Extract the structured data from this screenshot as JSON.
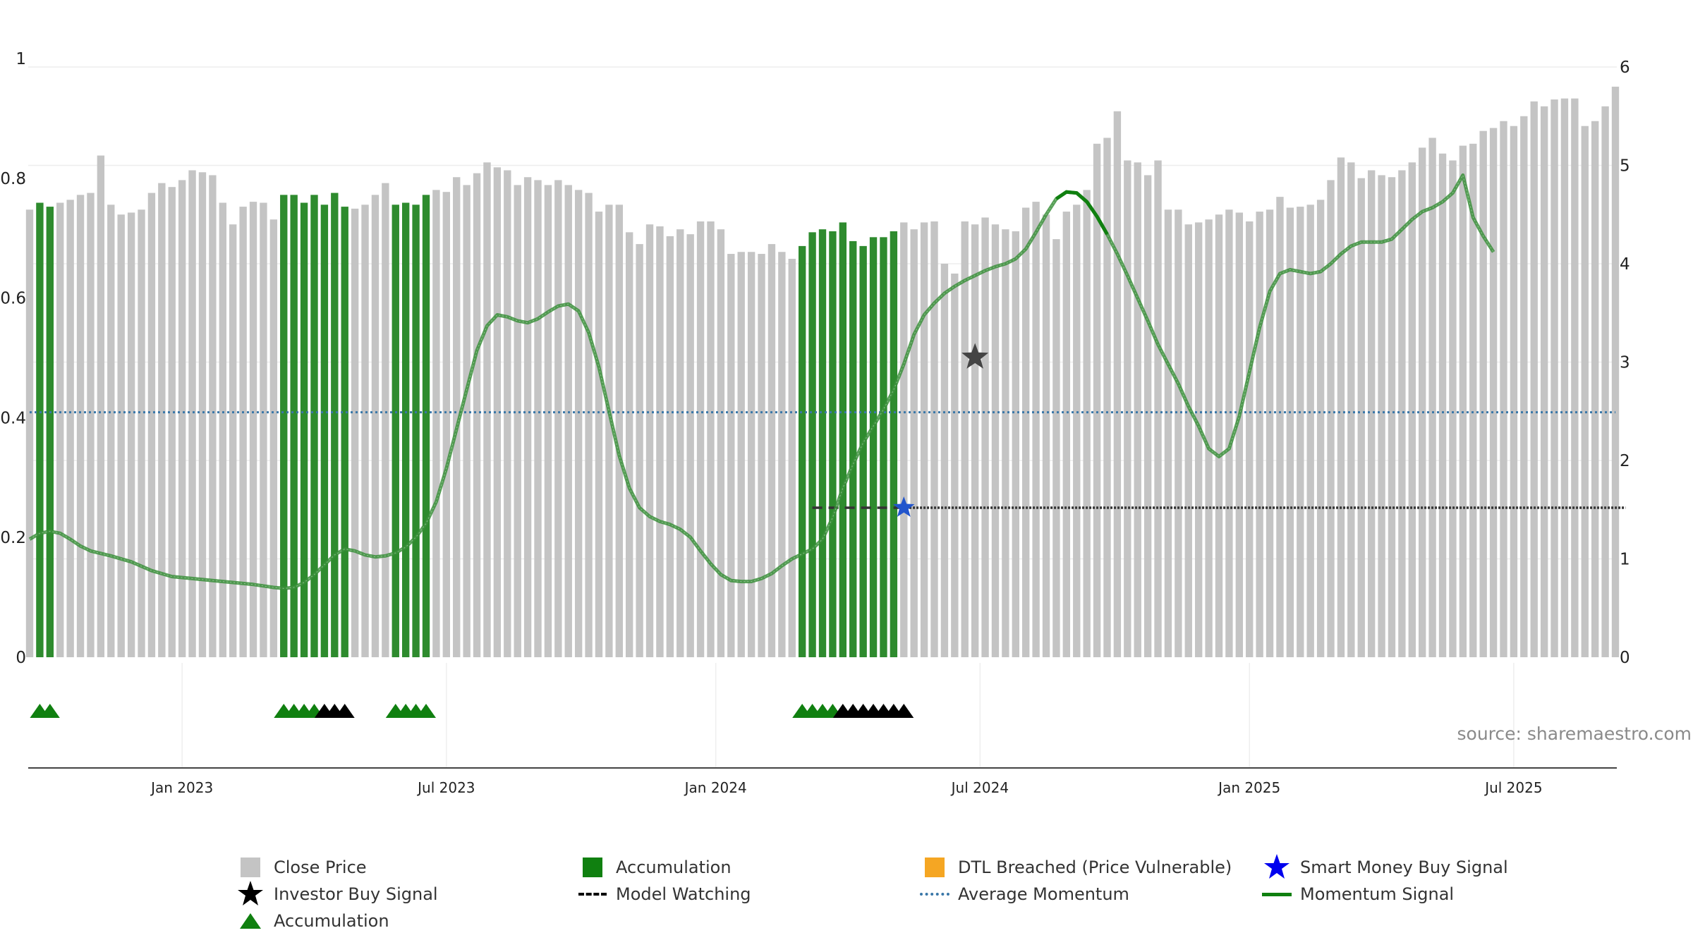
{
  "chart_data": {
    "type": "bar",
    "title": "",
    "source": "source: sharemaestro.com",
    "colors": {
      "close_price": "#c4c4c4",
      "accumulation": "#2e8b2e",
      "momentum": "#3b8f3b",
      "momentum_highlight": "#108010",
      "avg_momentum": "#3a77a8",
      "model_watching": "#333333",
      "investor_star": "#444444",
      "smart_money_star": "#2255cc",
      "triangle_green": "#108010",
      "triangle_black": "#000000"
    },
    "left_axis": {
      "ticks": [
        "0",
        "0.2",
        "0.4",
        "0.6",
        "0.8",
        "1"
      ],
      "range": [
        0,
        1
      ]
    },
    "right_axis": {
      "ticks": [
        "0",
        "1",
        "2",
        "3",
        "4",
        "5",
        "6"
      ],
      "range": [
        0,
        6
      ]
    },
    "x_axis": {
      "labels": [
        "Jan 2023",
        "Jul 2023",
        "Jan 2024",
        "Jul 2024",
        "Jan 2025",
        "Jul 2025"
      ],
      "label_bar_index": [
        15,
        41,
        67.5,
        93.5,
        120,
        146
      ]
    },
    "close_price": [
      4.55,
      4.62,
      4.58,
      4.62,
      4.65,
      4.7,
      4.72,
      5.1,
      4.6,
      4.5,
      4.52,
      4.55,
      4.72,
      4.82,
      4.78,
      4.85,
      4.95,
      4.93,
      4.9,
      4.62,
      4.4,
      4.58,
      4.63,
      4.62,
      4.45,
      4.7,
      4.7,
      4.62,
      4.7,
      4.6,
      4.72,
      4.58,
      4.56,
      4.6,
      4.7,
      4.82,
      4.6,
      4.62,
      4.6,
      4.7,
      4.75,
      4.73,
      4.88,
      4.8,
      4.92,
      5.03,
      4.98,
      4.95,
      4.8,
      4.88,
      4.85,
      4.8,
      4.85,
      4.8,
      4.75,
      4.72,
      4.53,
      4.6,
      4.6,
      4.32,
      4.2,
      4.4,
      4.38,
      4.28,
      4.35,
      4.3,
      4.43,
      4.43,
      4.35,
      4.1,
      4.12,
      4.12,
      4.1,
      4.2,
      4.12,
      4.05,
      4.18,
      4.32,
      4.35,
      4.33,
      4.42,
      4.23,
      4.18,
      4.27,
      4.27,
      4.33,
      4.42,
      4.35,
      4.42,
      4.43,
      4.0,
      3.9,
      4.43,
      4.4,
      4.47,
      4.4,
      4.35,
      4.33,
      4.57,
      4.63,
      4.5,
      4.25,
      4.53,
      4.6,
      4.75,
      5.22,
      5.28,
      5.55,
      5.05,
      5.03,
      4.9,
      5.05,
      4.55,
      4.55,
      4.4,
      4.42,
      4.45,
      4.5,
      4.55,
      4.52,
      4.43,
      4.53,
      4.55,
      4.68,
      4.57,
      4.58,
      4.6,
      4.65,
      4.85,
      5.08,
      5.03,
      4.87,
      4.95,
      4.9,
      4.88,
      4.95,
      5.03,
      5.18,
      5.28,
      5.12,
      5.05,
      5.2,
      5.22,
      5.35,
      5.38,
      5.45,
      5.4,
      5.5,
      5.65,
      5.6,
      5.67,
      5.68,
      5.68,
      5.4,
      5.45,
      5.6,
      5.8
    ],
    "accumulation_ranges": [
      [
        1,
        2
      ],
      [
        25,
        31
      ],
      [
        36,
        39
      ],
      [
        76,
        85
      ]
    ],
    "momentum_curve": [
      [
        0,
        1.2
      ],
      [
        1,
        1.26
      ],
      [
        2,
        1.28
      ],
      [
        3,
        1.26
      ],
      [
        4,
        1.2
      ],
      [
        5,
        1.13
      ],
      [
        6,
        1.08
      ],
      [
        8,
        1.03
      ],
      [
        10,
        0.97
      ],
      [
        12,
        0.88
      ],
      [
        14,
        0.82
      ],
      [
        16,
        0.8
      ],
      [
        18,
        0.78
      ],
      [
        20,
        0.76
      ],
      [
        22,
        0.74
      ],
      [
        24,
        0.71
      ],
      [
        25,
        0.7
      ],
      [
        26,
        0.71
      ],
      [
        27,
        0.76
      ],
      [
        28,
        0.84
      ],
      [
        29,
        0.94
      ],
      [
        30,
        1.04
      ],
      [
        31,
        1.1
      ],
      [
        32,
        1.08
      ],
      [
        33,
        1.04
      ],
      [
        34,
        1.02
      ],
      [
        35,
        1.03
      ],
      [
        36,
        1.06
      ],
      [
        37,
        1.12
      ],
      [
        38,
        1.22
      ],
      [
        39,
        1.36
      ],
      [
        40,
        1.58
      ],
      [
        41,
        1.92
      ],
      [
        42,
        2.32
      ],
      [
        43,
        2.72
      ],
      [
        44,
        3.12
      ],
      [
        45,
        3.37
      ],
      [
        46,
        3.48
      ],
      [
        47,
        3.46
      ],
      [
        48,
        3.42
      ],
      [
        49,
        3.4
      ],
      [
        50,
        3.44
      ],
      [
        51,
        3.51
      ],
      [
        52,
        3.57
      ],
      [
        53,
        3.59
      ],
      [
        54,
        3.52
      ],
      [
        55,
        3.3
      ],
      [
        56,
        2.95
      ],
      [
        57,
        2.5
      ],
      [
        58,
        2.05
      ],
      [
        59,
        1.72
      ],
      [
        60,
        1.52
      ],
      [
        61,
        1.43
      ],
      [
        62,
        1.38
      ],
      [
        63,
        1.35
      ],
      [
        64,
        1.3
      ],
      [
        65,
        1.22
      ],
      [
        66,
        1.08
      ],
      [
        67,
        0.95
      ],
      [
        68,
        0.84
      ],
      [
        69,
        0.78
      ],
      [
        70,
        0.77
      ],
      [
        71,
        0.77
      ],
      [
        72,
        0.8
      ],
      [
        73,
        0.85
      ],
      [
        74,
        0.93
      ],
      [
        75,
        1.0
      ],
      [
        76,
        1.05
      ],
      [
        77,
        1.1
      ],
      [
        78,
        1.2
      ],
      [
        79,
        1.42
      ],
      [
        80,
        1.72
      ],
      [
        81,
        1.96
      ],
      [
        82,
        2.18
      ],
      [
        83,
        2.35
      ],
      [
        84,
        2.52
      ],
      [
        85,
        2.72
      ],
      [
        86,
        2.98
      ],
      [
        87,
        3.28
      ],
      [
        88,
        3.48
      ],
      [
        89,
        3.6
      ],
      [
        90,
        3.7
      ],
      [
        91,
        3.77
      ],
      [
        92,
        3.83
      ],
      [
        93,
        3.88
      ],
      [
        94,
        3.93
      ],
      [
        95,
        3.97
      ],
      [
        96,
        4.0
      ],
      [
        97,
        4.05
      ],
      [
        98,
        4.15
      ],
      [
        99,
        4.32
      ],
      [
        100,
        4.5
      ],
      [
        101,
        4.66
      ],
      [
        102,
        4.73
      ],
      [
        103,
        4.72
      ],
      [
        104,
        4.63
      ],
      [
        105,
        4.48
      ],
      [
        106,
        4.3
      ],
      [
        107,
        4.1
      ],
      [
        108,
        3.88
      ],
      [
        109,
        3.65
      ],
      [
        110,
        3.42
      ],
      [
        111,
        3.18
      ],
      [
        112,
        2.98
      ],
      [
        113,
        2.78
      ],
      [
        114,
        2.55
      ],
      [
        115,
        2.35
      ],
      [
        116,
        2.12
      ],
      [
        117,
        2.04
      ],
      [
        118,
        2.12
      ],
      [
        119,
        2.45
      ],
      [
        120,
        2.9
      ],
      [
        121,
        3.35
      ],
      [
        122,
        3.72
      ],
      [
        123,
        3.9
      ],
      [
        124,
        3.94
      ],
      [
        125,
        3.92
      ],
      [
        126,
        3.9
      ],
      [
        127,
        3.92
      ],
      [
        128,
        4.0
      ],
      [
        129,
        4.1
      ],
      [
        130,
        4.18
      ],
      [
        131,
        4.22
      ],
      [
        132,
        4.22
      ],
      [
        133,
        4.22
      ],
      [
        134,
        4.25
      ],
      [
        135,
        4.35
      ],
      [
        136,
        4.45
      ],
      [
        137,
        4.53
      ],
      [
        138,
        4.57
      ],
      [
        139,
        4.63
      ],
      [
        140,
        4.72
      ],
      [
        141,
        4.9
      ],
      [
        142,
        4.47
      ],
      [
        143,
        4.28
      ],
      [
        144,
        4.12
      ]
    ],
    "momentum_highlight_range": [
      101,
      106
    ],
    "average_momentum": 2.49,
    "model_watching": {
      "level": 1.52,
      "start_index": 77,
      "end_index": 157,
      "dashed_until_index": 85.5
    },
    "investor_buy_signal": {
      "index": 93,
      "value": 3.05
    },
    "smart_money_buy_signal": {
      "index": 86,
      "value": 1.52
    },
    "triangles": [
      {
        "index": 1,
        "color": "green"
      },
      {
        "index": 2,
        "color": "green"
      },
      {
        "index": 25,
        "color": "green"
      },
      {
        "index": 26,
        "color": "green"
      },
      {
        "index": 27,
        "color": "green"
      },
      {
        "index": 28,
        "color": "green"
      },
      {
        "index": 29,
        "color": "black"
      },
      {
        "index": 30,
        "color": "black"
      },
      {
        "index": 31,
        "color": "black"
      },
      {
        "index": 36,
        "color": "green"
      },
      {
        "index": 37,
        "color": "green"
      },
      {
        "index": 38,
        "color": "green"
      },
      {
        "index": 39,
        "color": "green"
      },
      {
        "index": 76,
        "color": "green"
      },
      {
        "index": 77,
        "color": "green"
      },
      {
        "index": 78,
        "color": "green"
      },
      {
        "index": 79,
        "color": "green"
      },
      {
        "index": 80,
        "color": "black"
      },
      {
        "index": 81,
        "color": "black"
      },
      {
        "index": 82,
        "color": "black"
      },
      {
        "index": 83,
        "color": "black"
      },
      {
        "index": 84,
        "color": "black"
      },
      {
        "index": 85,
        "color": "black"
      },
      {
        "index": 86,
        "color": "black"
      }
    ],
    "legend": [
      "Close Price",
      "Accumulation",
      "DTL Breached (Price Vulnerable)",
      "Smart Money Buy Signal",
      "Investor Buy Signal",
      "Model Watching",
      "Average Momentum",
      "Momentum Signal",
      "Accumulation"
    ]
  }
}
